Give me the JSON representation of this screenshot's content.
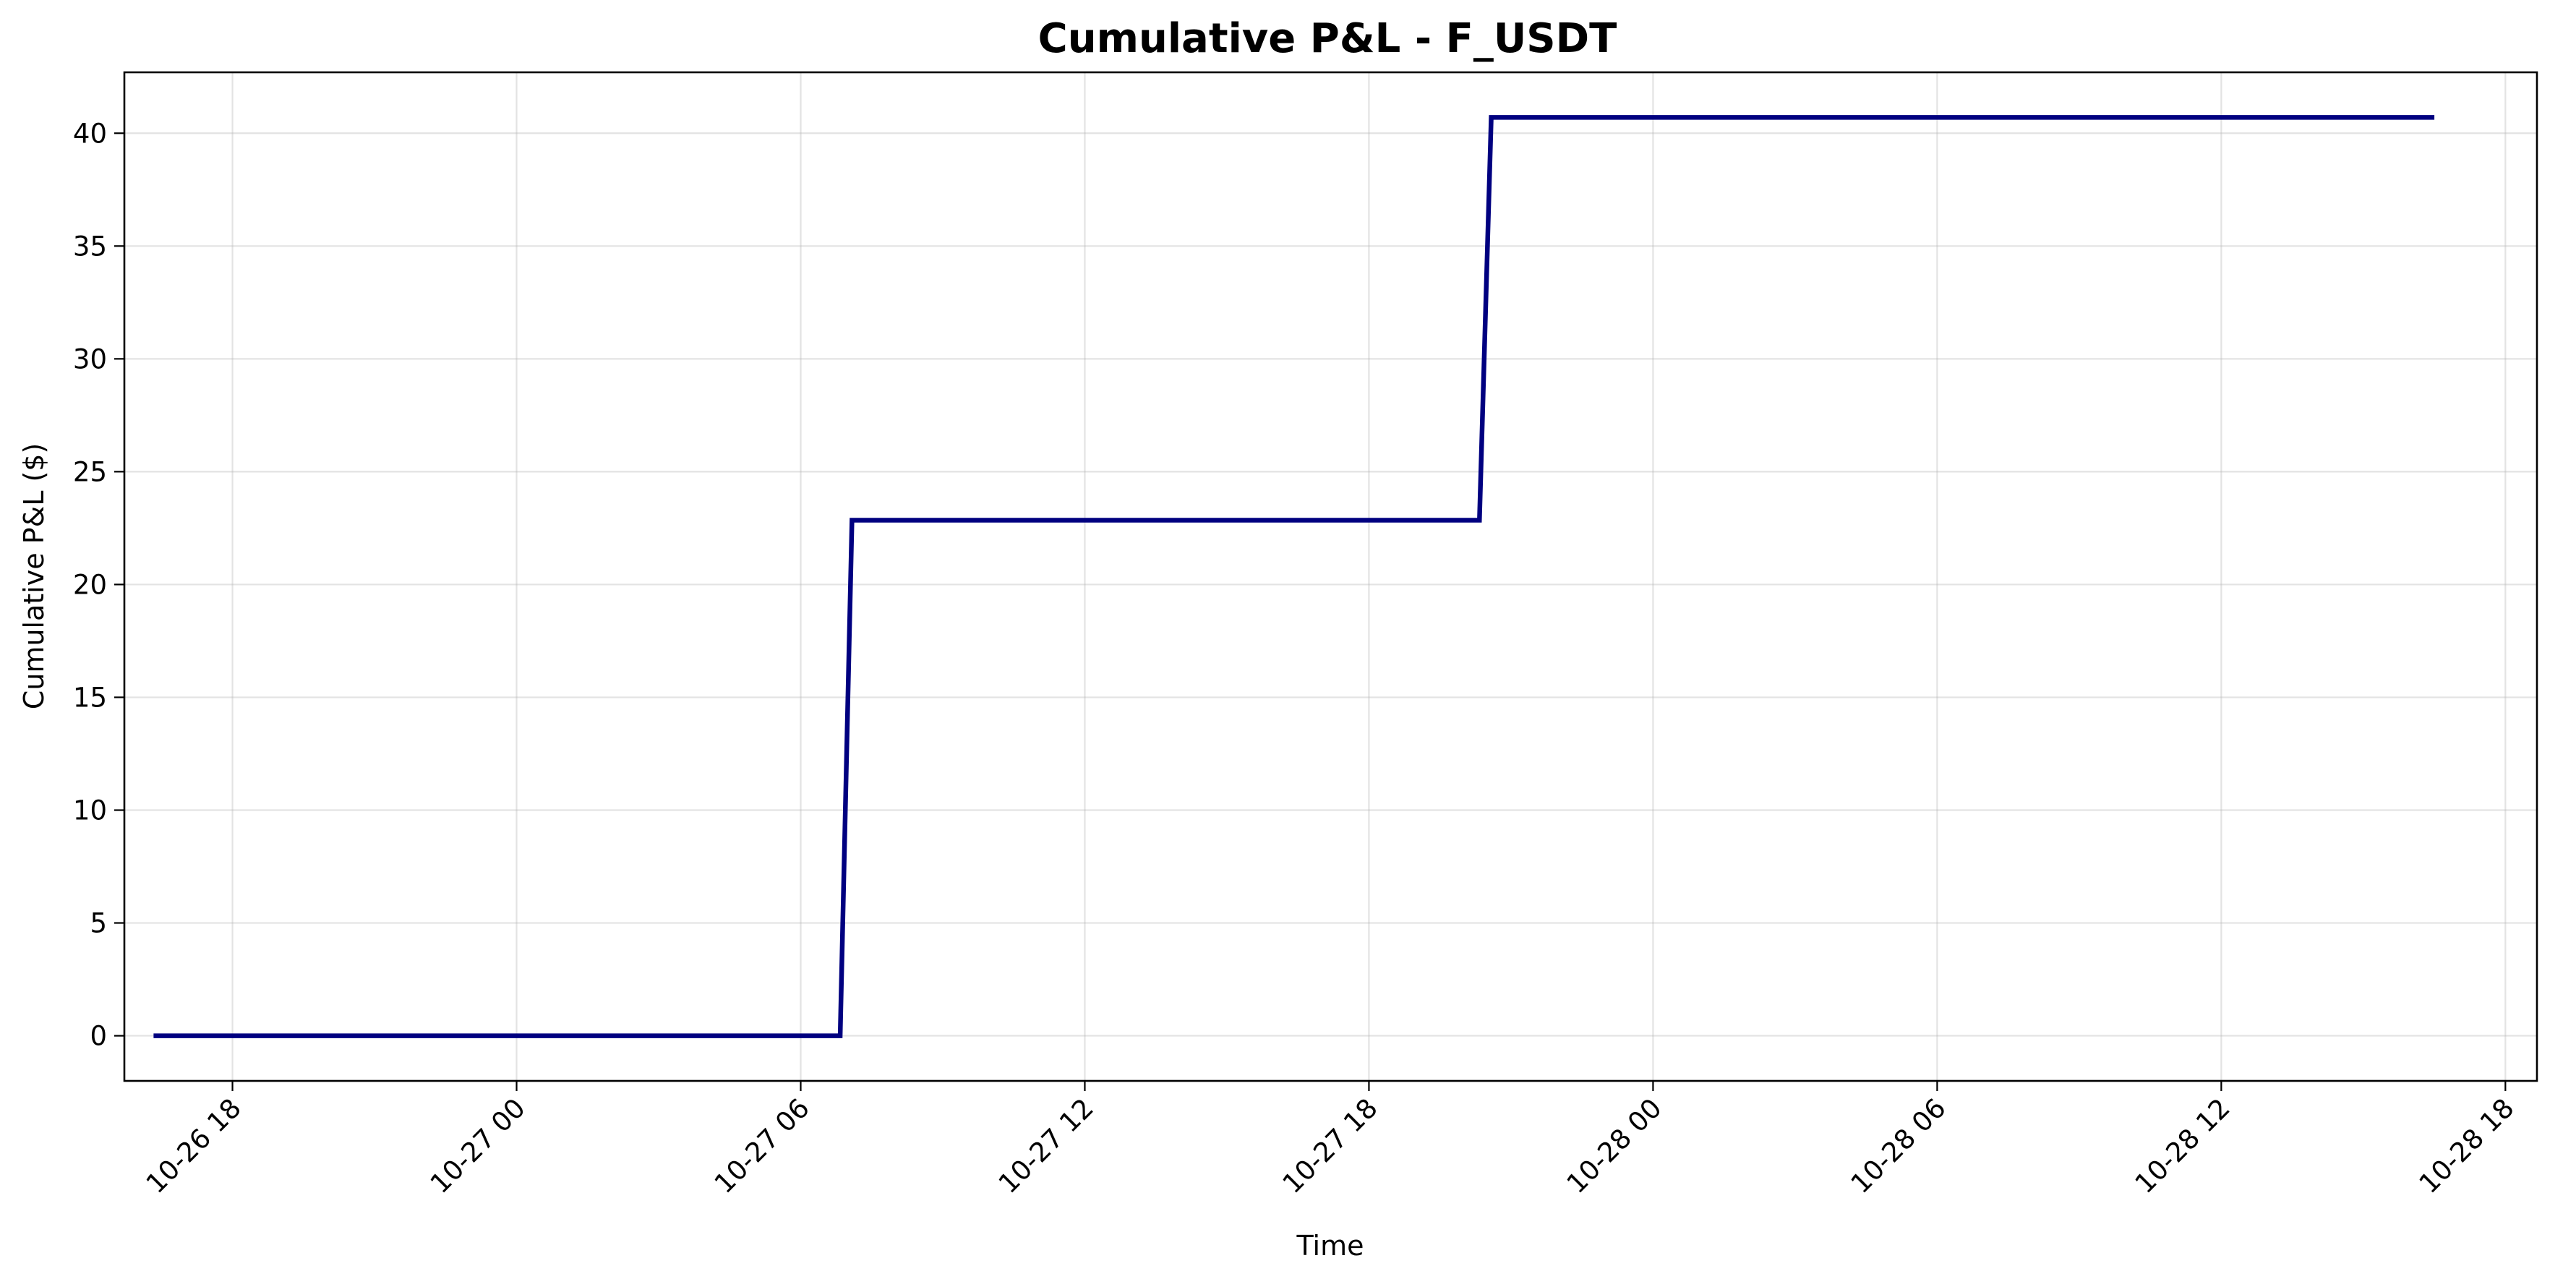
{
  "chart_data": {
    "type": "line",
    "title": "Cumulative P&L - F_USDT",
    "xlabel": "Time",
    "ylabel": "Cumulative P&L ($)",
    "x_axis_type": "datetime",
    "xlim": [
      "2025-10-26T15:43:00",
      "2025-10-28T18:40:00"
    ],
    "ylim": [
      -2.0,
      42.7
    ],
    "x_ticks": [
      {
        "value": "2025-10-26T18:00:00",
        "label": "10-26 18"
      },
      {
        "value": "2025-10-27T00:00:00",
        "label": "10-27 00"
      },
      {
        "value": "2025-10-27T06:00:00",
        "label": "10-27 06"
      },
      {
        "value": "2025-10-27T12:00:00",
        "label": "10-27 12"
      },
      {
        "value": "2025-10-27T18:00:00",
        "label": "10-27 18"
      },
      {
        "value": "2025-10-28T00:00:00",
        "label": "10-28 00"
      },
      {
        "value": "2025-10-28T06:00:00",
        "label": "10-28 06"
      },
      {
        "value": "2025-10-28T12:00:00",
        "label": "10-28 12"
      },
      {
        "value": "2025-10-28T18:00:00",
        "label": "10-28 18"
      }
    ],
    "y_ticks": [
      {
        "value": 0,
        "label": "0"
      },
      {
        "value": 5,
        "label": "5"
      },
      {
        "value": 10,
        "label": "10"
      },
      {
        "value": 15,
        "label": "15"
      },
      {
        "value": 20,
        "label": "20"
      },
      {
        "value": 25,
        "label": "25"
      },
      {
        "value": 30,
        "label": "30"
      },
      {
        "value": 35,
        "label": "35"
      },
      {
        "value": 40,
        "label": "40"
      }
    ],
    "grid": true,
    "legend": "none",
    "series": [
      {
        "color": "#000080",
        "points": [
          {
            "x": "2025-10-26T16:20:00",
            "y": 0.0
          },
          {
            "x": "2025-10-27T06:50:00",
            "y": 0.0
          },
          {
            "x": "2025-10-27T07:05:00",
            "y": 22.85
          },
          {
            "x": "2025-10-27T20:20:00",
            "y": 22.85
          },
          {
            "x": "2025-10-27T20:35:00",
            "y": 40.7
          },
          {
            "x": "2025-10-28T16:30:00",
            "y": 40.7
          }
        ]
      }
    ]
  }
}
